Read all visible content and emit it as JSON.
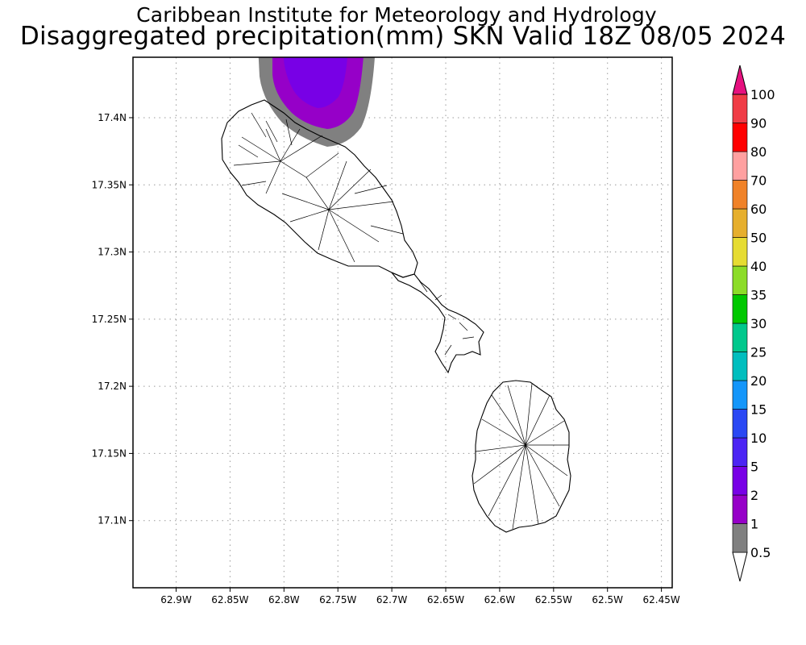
{
  "header": {
    "line1": "Caribbean Institute for Meteorology and Hydrology",
    "line2": "Disaggregated precipitation(mm) SKN Valid 18Z 08/05 2024"
  },
  "map": {
    "lon_range": [
      -62.94,
      -62.44
    ],
    "lat_range": [
      17.05,
      17.445
    ],
    "lat_ticks": [
      {
        "value": 17.4,
        "label": "17.4N"
      },
      {
        "value": 17.35,
        "label": "17.35N"
      },
      {
        "value": 17.3,
        "label": "17.3N"
      },
      {
        "value": 17.25,
        "label": "17.25N"
      },
      {
        "value": 17.2,
        "label": "17.2N"
      },
      {
        "value": 17.15,
        "label": "17.15N"
      },
      {
        "value": 17.1,
        "label": "17.1N"
      }
    ],
    "lon_ticks": [
      {
        "value": -62.9,
        "label": "62.9W"
      },
      {
        "value": -62.85,
        "label": "62.85W"
      },
      {
        "value": -62.8,
        "label": "62.8W"
      },
      {
        "value": -62.75,
        "label": "62.75W"
      },
      {
        "value": -62.7,
        "label": "62.7W"
      },
      {
        "value": -62.65,
        "label": "62.65W"
      },
      {
        "value": -62.6,
        "label": "62.6W"
      },
      {
        "value": -62.55,
        "label": "62.55W"
      },
      {
        "value": -62.5,
        "label": "62.5W"
      },
      {
        "value": -62.45,
        "label": "62.45W"
      }
    ],
    "grid": "dotted"
  },
  "colorbar": {
    "labels": [
      "0.5",
      "1",
      "2",
      "5",
      "10",
      "15",
      "20",
      "25",
      "30",
      "35",
      "40",
      "50",
      "60",
      "70",
      "80",
      "90",
      "100"
    ],
    "colors": [
      "#808080",
      "#9600c8",
      "#7800e6",
      "#4c24f4",
      "#2a48f4",
      "#1496fa",
      "#00bebe",
      "#00c88c",
      "#00c800",
      "#8cdc28",
      "#e6dc32",
      "#e6af2d",
      "#f08228",
      "#ffa0a0",
      "#ff0000",
      "#f03c46",
      "#e6117f"
    ]
  }
}
